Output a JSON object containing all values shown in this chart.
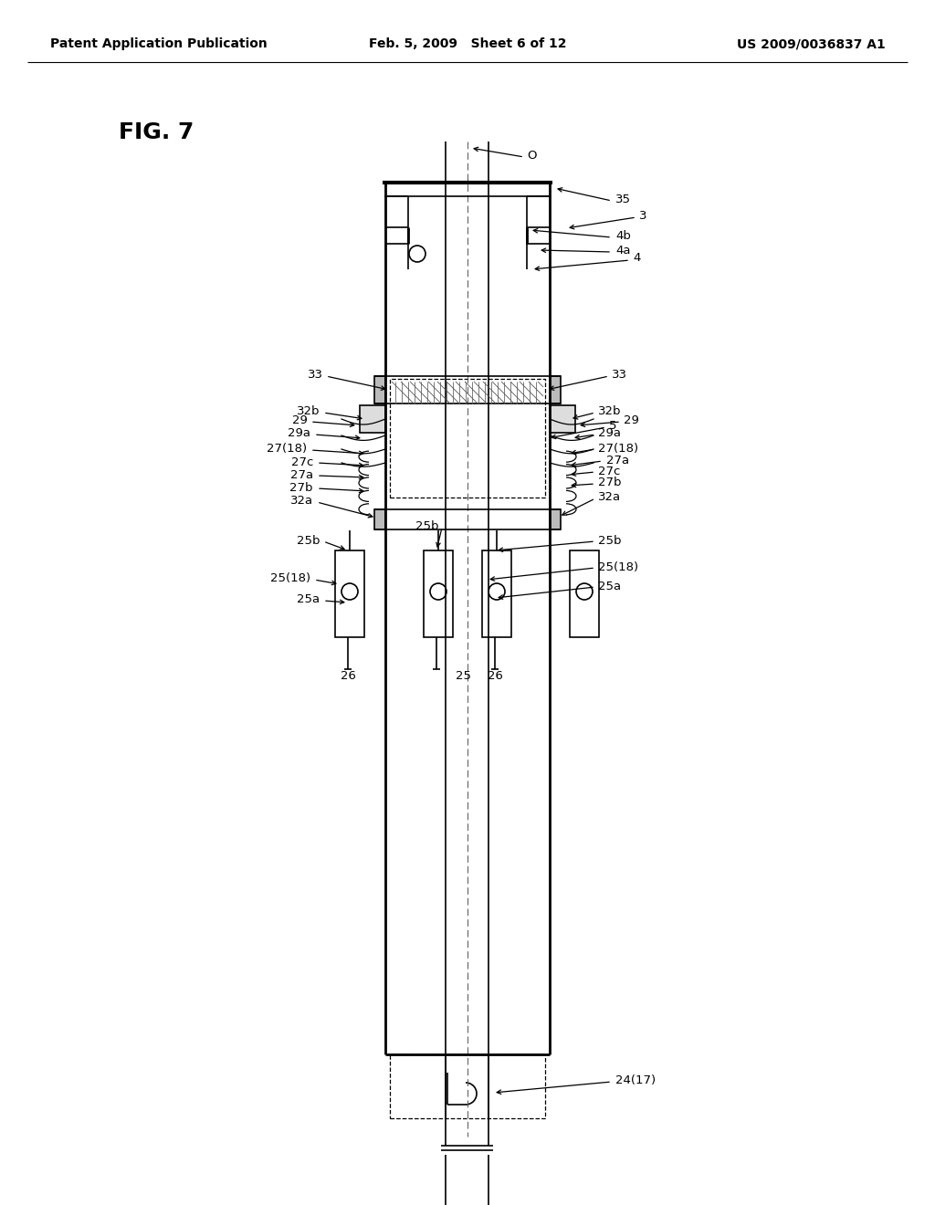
{
  "bg_color": "#ffffff",
  "header_left": "Patent Application Publication",
  "header_mid": "Feb. 5, 2009   Sheet 6 of 12",
  "header_right": "US 2009/0036837 A1",
  "fig_label": "FIG. 7",
  "header_fontsize": 10,
  "annotation_fontsize": 9.5,
  "fig_fontsize": 18
}
